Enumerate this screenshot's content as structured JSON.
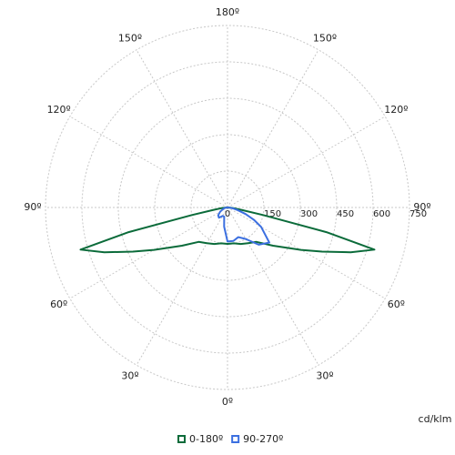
{
  "chart_data": {
    "type": "polar",
    "unit_label": "cd/klm",
    "angles": [
      -90,
      -85,
      -80,
      -78,
      -76,
      -74,
      -70,
      -65,
      -60,
      -50,
      -40,
      -30,
      -20,
      -10,
      0,
      10,
      20,
      30,
      40,
      50,
      60,
      65,
      70,
      74,
      76,
      78,
      80,
      85,
      90
    ],
    "series": [
      {
        "name": "0-180º",
        "color": "#0b6b3a",
        "values": [
          0,
          20,
          60,
          150,
          420,
          630,
          540,
          430,
          350,
          245,
          185,
          170,
          160,
          150,
          150,
          150,
          160,
          170,
          185,
          245,
          350,
          430,
          540,
          630,
          420,
          150,
          60,
          20,
          0
        ]
      },
      {
        "name": "90-270º",
        "color": "#3b6fe0",
        "values": [
          0,
          5,
          10,
          10,
          15,
          15,
          20,
          25,
          35,
          50,
          55,
          40,
          40,
          80,
          140,
          140,
          130,
          150,
          200,
          225,
          160,
          120,
          80,
          50,
          40,
          30,
          25,
          10,
          0
        ]
      }
    ],
    "rlim": [
      0,
      750
    ],
    "rticks": [
      0,
      150,
      300,
      450,
      600,
      750
    ],
    "angle_ticks": [
      {
        "value": 0,
        "label": "0º"
      },
      {
        "value": 30,
        "label": "30º"
      },
      {
        "value": 60,
        "label": "60º"
      },
      {
        "value": 90,
        "label": "90º"
      },
      {
        "value": 120,
        "label": "120º"
      },
      {
        "value": 150,
        "label": "150º"
      },
      {
        "value": 180,
        "label": "180º"
      }
    ],
    "grid": true
  }
}
